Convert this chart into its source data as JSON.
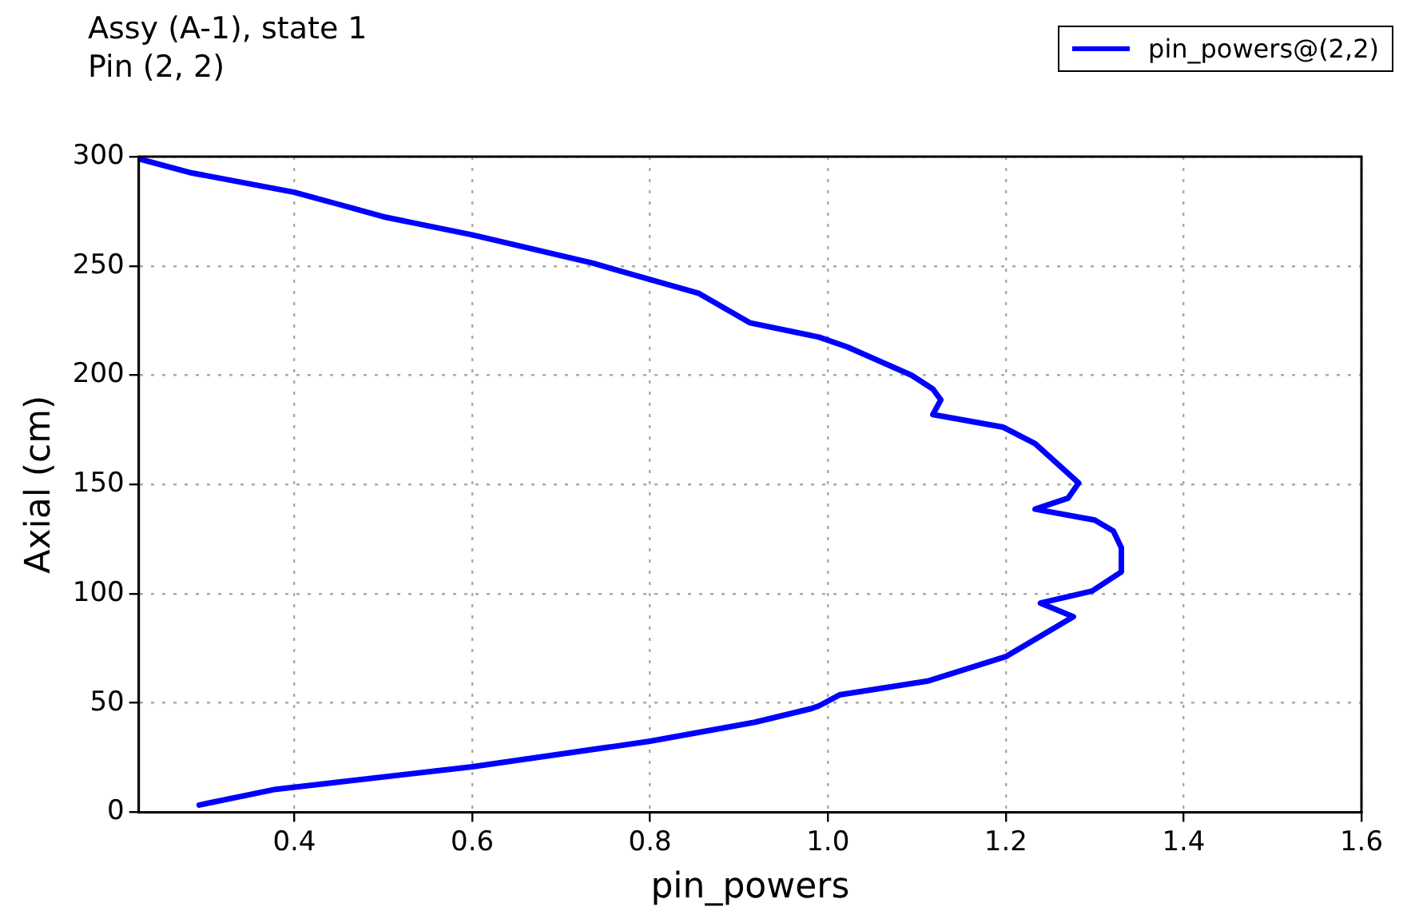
{
  "chart_data": {
    "type": "line",
    "title": "Assy (A-1), state 1",
    "subtitle": "Pin (2, 2)",
    "xlabel": "pin_powers",
    "ylabel": "Axial (cm)",
    "xlim": [
      0.225,
      1.6
    ],
    "xticks": [
      0.4,
      0.6,
      0.8,
      {
        "value": 1,
        "label": "1.0"
      },
      1.2,
      1.4,
      1.6
    ],
    "ylim": [
      0,
      300
    ],
    "yticks": [
      0,
      50,
      100,
      150,
      200,
      250,
      300
    ],
    "grid": true,
    "legend": "top right",
    "marker": "none",
    "line_style": "solid",
    "series": [
      {
        "name": "pin_powers@(2,2)",
        "color": "#0000ff",
        "x": [
          0.293,
          0.379,
          0.6,
          0.8,
          0.918,
          0.982,
          0.99,
          1.013,
          1.112,
          1.2,
          1.276,
          1.239,
          1.297,
          1.33,
          1.33,
          1.321,
          1.3,
          1.233,
          1.27,
          1.282,
          1.233,
          1.197,
          1.118,
          1.127,
          1.118,
          1.094,
          1.022,
          0.99,
          0.912,
          0.855,
          0.736,
          0.6,
          0.5,
          0.445,
          0.4,
          0.285,
          0.227
        ],
        "values": [
          3.3,
          10.5,
          20.8,
          32.5,
          41.2,
          47.5,
          48.7,
          53.7,
          60,
          71.2,
          89.5,
          95.7,
          101.2,
          110,
          121,
          128.7,
          133.7,
          138.7,
          143.7,
          150.7,
          168.7,
          176.2,
          182,
          188.7,
          193.7,
          200,
          212.9,
          217.4,
          224,
          237.4,
          251.2,
          264.2,
          272.5,
          278.7,
          283.7,
          292.5,
          298.8
        ]
      }
    ]
  }
}
